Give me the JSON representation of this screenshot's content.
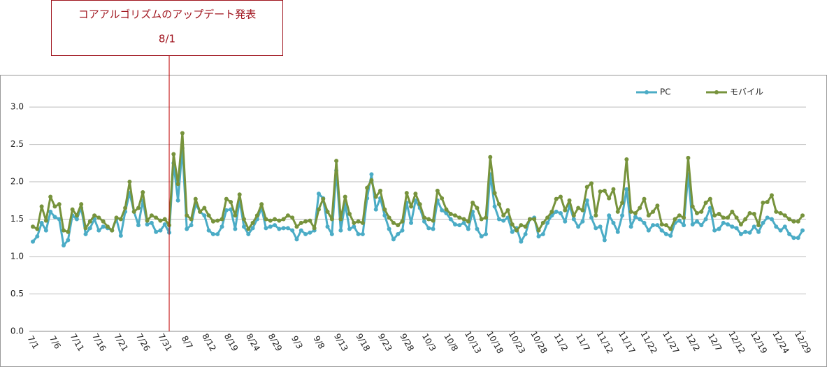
{
  "chart_data": {
    "type": "line",
    "annotation": {
      "text": "コアアルゴリズムのアップデート発表",
      "date": "8/1",
      "index": 31
    },
    "categories": [
      "7/1",
      null,
      null,
      null,
      null,
      "7/6",
      null,
      null,
      null,
      null,
      "7/11",
      null,
      null,
      null,
      null,
      "7/16",
      null,
      null,
      null,
      null,
      "7/21",
      null,
      null,
      null,
      null,
      "7/26",
      null,
      null,
      null,
      null,
      "7/31",
      null,
      null,
      null,
      null,
      "8/7",
      null,
      null,
      null,
      null,
      "8/12",
      null,
      null,
      null,
      null,
      "8/19",
      null,
      null,
      null,
      null,
      "8/24",
      null,
      null,
      null,
      null,
      "8/29",
      null,
      null,
      null,
      null,
      "9/3",
      null,
      null,
      null,
      null,
      "9/8",
      null,
      null,
      null,
      null,
      "9/13",
      null,
      null,
      null,
      null,
      "9/18",
      null,
      null,
      null,
      null,
      "9/23",
      null,
      null,
      null,
      null,
      "9/28",
      null,
      null,
      null,
      null,
      "10/3",
      null,
      null,
      null,
      null,
      "10/8",
      null,
      null,
      null,
      null,
      "10/13",
      null,
      null,
      null,
      null,
      "10/18",
      null,
      null,
      null,
      null,
      "10/23",
      null,
      null,
      null,
      null,
      "10/28",
      null,
      null,
      null,
      null,
      "11/2",
      null,
      null,
      null,
      null,
      "11/7",
      null,
      null,
      null,
      null,
      "11/12",
      null,
      null,
      null,
      null,
      "11/17",
      null,
      null,
      null,
      null,
      "11/22",
      null,
      null,
      null,
      null,
      "11/27",
      null,
      null,
      null,
      null,
      "12/2",
      null,
      null,
      null,
      null,
      "12/7",
      null,
      null,
      null,
      null,
      "12/12",
      null,
      null,
      null,
      null,
      "12/19",
      null,
      null,
      null,
      null,
      "12/24",
      null,
      null,
      null,
      null,
      "12/29"
    ],
    "series": [
      {
        "name": "PC",
        "color": "#4bacc6",
        "values": [
          1.2,
          1.27,
          1.45,
          1.35,
          1.6,
          1.53,
          1.5,
          1.15,
          1.22,
          1.55,
          1.5,
          1.65,
          1.3,
          1.38,
          1.5,
          1.35,
          1.4,
          1.38,
          1.35,
          1.5,
          1.28,
          1.6,
          1.85,
          1.6,
          1.42,
          1.75,
          1.43,
          1.45,
          1.33,
          1.35,
          1.43,
          1.32,
          2.25,
          1.75,
          2.45,
          1.37,
          1.42,
          1.7,
          1.6,
          1.55,
          1.35,
          1.3,
          1.3,
          1.4,
          1.62,
          1.63,
          1.37,
          1.75,
          1.4,
          1.3,
          1.38,
          1.5,
          1.65,
          1.38,
          1.4,
          1.42,
          1.37,
          1.38,
          1.38,
          1.35,
          1.23,
          1.35,
          1.3,
          1.32,
          1.35,
          1.84,
          1.78,
          1.4,
          1.3,
          2.15,
          1.35,
          1.7,
          1.37,
          1.4,
          1.3,
          1.3,
          1.78,
          2.1,
          1.63,
          1.78,
          1.55,
          1.37,
          1.23,
          1.3,
          1.35,
          1.72,
          1.45,
          1.75,
          1.65,
          1.47,
          1.38,
          1.37,
          1.75,
          1.62,
          1.58,
          1.5,
          1.43,
          1.42,
          1.45,
          1.37,
          1.6,
          1.37,
          1.27,
          1.3,
          2.1,
          1.67,
          1.5,
          1.48,
          1.52,
          1.33,
          1.38,
          1.2,
          1.3,
          1.5,
          1.52,
          1.27,
          1.3,
          1.45,
          1.55,
          1.6,
          1.58,
          1.47,
          1.68,
          1.5,
          1.4,
          1.47,
          1.75,
          1.52,
          1.38,
          1.4,
          1.22,
          1.55,
          1.45,
          1.33,
          1.55,
          1.9,
          1.4,
          1.53,
          1.5,
          1.45,
          1.35,
          1.42,
          1.42,
          1.35,
          1.3,
          1.28,
          1.45,
          1.48,
          1.42,
          2.1,
          1.43,
          1.47,
          1.42,
          1.5,
          1.65,
          1.35,
          1.37,
          1.45,
          1.43,
          1.4,
          1.38,
          1.3,
          1.33,
          1.32,
          1.4,
          1.33,
          1.45,
          1.52,
          1.5,
          1.4,
          1.35,
          1.4,
          1.3,
          1.25,
          1.25,
          1.35
        ]
      },
      {
        "name": "モバイル",
        "color": "#77933c",
        "values": [
          1.4,
          1.37,
          1.67,
          1.48,
          1.8,
          1.67,
          1.7,
          1.35,
          1.33,
          1.63,
          1.55,
          1.7,
          1.38,
          1.47,
          1.55,
          1.52,
          1.47,
          1.4,
          1.35,
          1.52,
          1.5,
          1.65,
          2.0,
          1.6,
          1.65,
          1.86,
          1.48,
          1.55,
          1.52,
          1.48,
          1.5,
          1.42,
          2.37,
          1.97,
          2.65,
          1.55,
          1.5,
          1.77,
          1.6,
          1.65,
          1.55,
          1.47,
          1.48,
          1.5,
          1.77,
          1.73,
          1.55,
          1.83,
          1.5,
          1.37,
          1.45,
          1.55,
          1.7,
          1.5,
          1.48,
          1.5,
          1.48,
          1.5,
          1.55,
          1.52,
          1.4,
          1.45,
          1.47,
          1.48,
          1.38,
          1.63,
          1.77,
          1.6,
          1.5,
          2.28,
          1.5,
          1.8,
          1.57,
          1.45,
          1.47,
          1.45,
          1.92,
          2.02,
          1.8,
          1.88,
          1.63,
          1.52,
          1.45,
          1.42,
          1.47,
          1.85,
          1.67,
          1.84,
          1.7,
          1.52,
          1.5,
          1.48,
          1.88,
          1.78,
          1.63,
          1.57,
          1.55,
          1.52,
          1.5,
          1.47,
          1.72,
          1.65,
          1.5,
          1.52,
          2.33,
          1.85,
          1.7,
          1.55,
          1.62,
          1.43,
          1.35,
          1.42,
          1.4,
          1.5,
          1.5,
          1.35,
          1.45,
          1.52,
          1.6,
          1.77,
          1.8,
          1.62,
          1.75,
          1.55,
          1.65,
          1.62,
          1.93,
          1.98,
          1.55,
          1.87,
          1.88,
          1.78,
          1.9,
          1.6,
          1.72,
          2.3,
          1.6,
          1.58,
          1.65,
          1.77,
          1.55,
          1.6,
          1.68,
          1.43,
          1.42,
          1.37,
          1.5,
          1.55,
          1.52,
          2.32,
          1.67,
          1.58,
          1.6,
          1.72,
          1.77,
          1.55,
          1.57,
          1.52,
          1.52,
          1.6,
          1.52,
          1.43,
          1.5,
          1.58,
          1.57,
          1.42,
          1.72,
          1.73,
          1.82,
          1.6,
          1.58,
          1.55,
          1.5,
          1.47,
          1.47,
          1.55
        ]
      }
    ],
    "ylim": [
      0,
      3.3
    ],
    "yticks": [
      {
        "value": 0,
        "label": "0.0"
      },
      {
        "value": 0.5,
        "label": "0.5"
      },
      {
        "value": 1,
        "label": "1.0"
      },
      {
        "value": 1.5,
        "label": "1.5"
      },
      {
        "value": 2,
        "label": "2.0"
      },
      {
        "value": 2.5,
        "label": "2.5"
      },
      {
        "value": 3,
        "label": "3.0"
      }
    ],
    "grid": true,
    "legend": "top-right"
  }
}
